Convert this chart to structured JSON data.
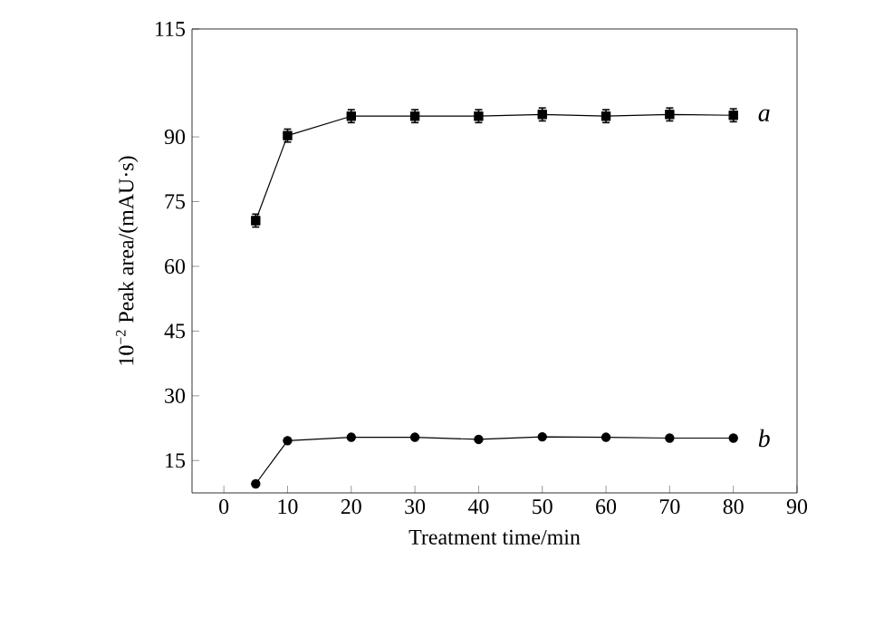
{
  "chart_data": {
    "type": "line",
    "xlabel": "Treatment time/min",
    "ylabel": "10$^{−2}$ Peak area/(mAU·s)",
    "x": [
      5,
      10,
      20,
      30,
      40,
      50,
      60,
      70,
      80
    ],
    "series": [
      {
        "name": "a",
        "color": "#000000",
        "marker": "square",
        "values": [
          70.6,
          90.3,
          94.8,
          94.8,
          94.8,
          95.2,
          94.8,
          95.2,
          95.0
        ],
        "errors": [
          1.5,
          1.5,
          1.5,
          1.5,
          1.5,
          1.5,
          1.5,
          1.5,
          1.5
        ]
      },
      {
        "name": "b",
        "color": "#000000",
        "marker": "circle",
        "values": [
          9.6,
          19.6,
          20.4,
          20.4,
          19.9,
          20.5,
          20.4,
          20.2,
          20.2
        ]
      }
    ],
    "xlim": [
      -5,
      90
    ],
    "xticks": [
      0,
      10,
      20,
      30,
      40,
      50,
      60,
      70,
      80,
      90
    ],
    "ylim": [
      7.5,
      115
    ],
    "yticks": [
      15,
      30,
      45,
      60,
      75,
      90,
      115
    ],
    "grid": false,
    "legend": false,
    "line_style": "solid"
  }
}
